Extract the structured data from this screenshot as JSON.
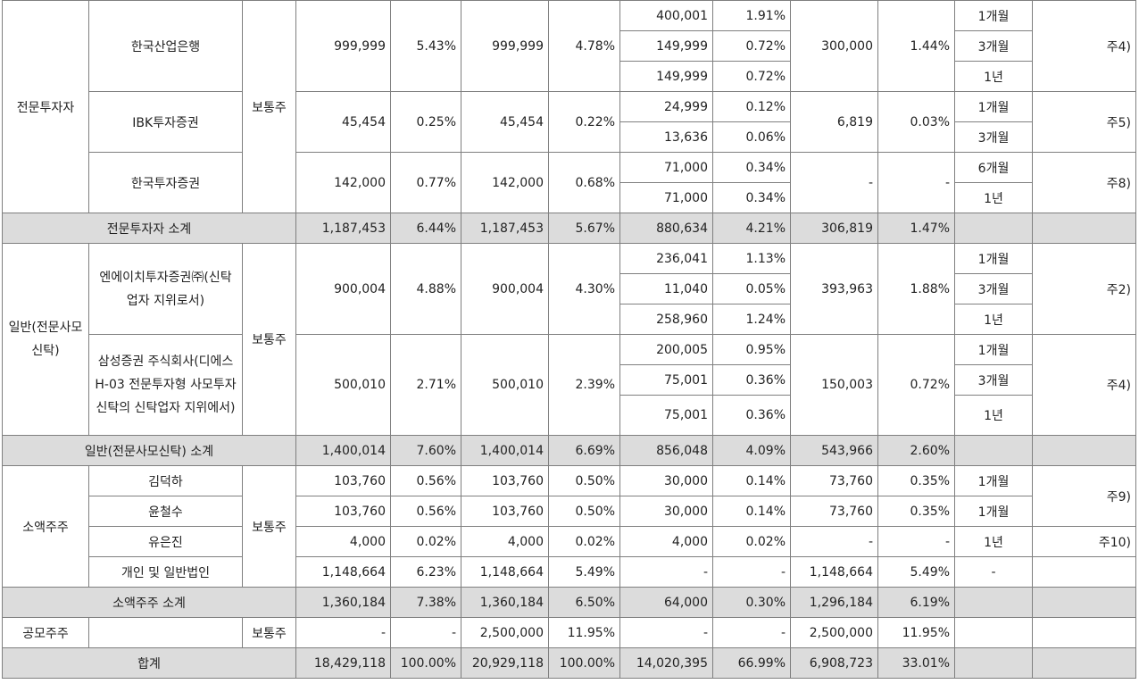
{
  "groups": {
    "pro": {
      "label": "전문투자자",
      "stock": "보통주",
      "inv1": {
        "name": "한국산업은행",
        "pre_shares": "999,999",
        "pre_ratio": "5.43%",
        "post_shares": "999,999",
        "post_ratio": "4.78%",
        "lock": [
          {
            "shares": "400,001",
            "ratio": "1.91%",
            "period": "1개월"
          },
          {
            "shares": "149,999",
            "ratio": "0.72%",
            "period": "3개월"
          },
          {
            "shares": "149,999",
            "ratio": "0.72%",
            "period": "1년"
          }
        ],
        "free_shares": "300,000",
        "free_ratio": "1.44%",
        "note": "주4)"
      },
      "inv2": {
        "name": "IBK투자증권",
        "pre_shares": "45,454",
        "pre_ratio": "0.25%",
        "post_shares": "45,454",
        "post_ratio": "0.22%",
        "lock": [
          {
            "shares": "24,999",
            "ratio": "0.12%",
            "period": "1개월"
          },
          {
            "shares": "13,636",
            "ratio": "0.06%",
            "period": "3개월"
          }
        ],
        "free_shares": "6,819",
        "free_ratio": "0.03%",
        "note": "주5)"
      },
      "inv3": {
        "name": "한국투자증권",
        "pre_shares": "142,000",
        "pre_ratio": "0.77%",
        "post_shares": "142,000",
        "post_ratio": "0.68%",
        "lock": [
          {
            "shares": "71,000",
            "ratio": "0.34%",
            "period": "6개월"
          },
          {
            "shares": "71,000",
            "ratio": "0.34%",
            "period": "1년"
          }
        ],
        "free_shares": "-",
        "free_ratio": "-",
        "note": "주8)"
      },
      "subtotal": {
        "label": "전문투자자 소계",
        "pre_shares": "1,187,453",
        "pre_ratio": "6.44%",
        "post_shares": "1,187,453",
        "post_ratio": "5.67%",
        "lock_shares": "880,634",
        "lock_ratio": "4.21%",
        "free_shares": "306,819",
        "free_ratio": "1.47%"
      }
    },
    "general": {
      "label": "일반(전문사모신탁)",
      "stock": "보통주",
      "inv1": {
        "name": "엔에이치투자증권㈜(신탁업자 지위로서)",
        "pre_shares": "900,004",
        "pre_ratio": "4.88%",
        "post_shares": "900,004",
        "post_ratio": "4.30%",
        "lock": [
          {
            "shares": "236,041",
            "ratio": "1.13%",
            "period": "1개월"
          },
          {
            "shares": "11,040",
            "ratio": "0.05%",
            "period": "3개월"
          },
          {
            "shares": "258,960",
            "ratio": "1.24%",
            "period": "1년"
          }
        ],
        "free_shares": "393,963",
        "free_ratio": "1.88%",
        "note": "주2)"
      },
      "inv2": {
        "name": "삼성증권 주식회사(디에스 H-03 전문투자형 사모투자신탁의 신탁업자 지위에서)",
        "pre_shares": "500,010",
        "pre_ratio": "2.71%",
        "post_shares": "500,010",
        "post_ratio": "2.39%",
        "lock": [
          {
            "shares": "200,005",
            "ratio": "0.95%",
            "period": "1개월"
          },
          {
            "shares": "75,001",
            "ratio": "0.36%",
            "period": "3개월"
          },
          {
            "shares": "75,001",
            "ratio": "0.36%",
            "period": "1년"
          }
        ],
        "free_shares": "150,003",
        "free_ratio": "0.72%",
        "note": "주4)"
      },
      "subtotal": {
        "label": "일반(전문사모신탁) 소계",
        "pre_shares": "1,400,014",
        "pre_ratio": "7.60%",
        "post_shares": "1,400,014",
        "post_ratio": "6.69%",
        "lock_shares": "856,048",
        "lock_ratio": "4.09%",
        "free_shares": "543,966",
        "free_ratio": "2.60%"
      }
    },
    "minor": {
      "label": "소액주주",
      "stock": "보통주",
      "rows": [
        {
          "name": "김덕하",
          "pre_shares": "103,760",
          "pre_ratio": "0.56%",
          "post_shares": "103,760",
          "post_ratio": "0.50%",
          "lock_shares": "30,000",
          "lock_ratio": "0.14%",
          "free_shares": "73,760",
          "free_ratio": "0.35%",
          "period": "1개월"
        },
        {
          "name": "윤철수",
          "pre_shares": "103,760",
          "pre_ratio": "0.56%",
          "post_shares": "103,760",
          "post_ratio": "0.50%",
          "lock_shares": "30,000",
          "lock_ratio": "0.14%",
          "free_shares": "73,760",
          "free_ratio": "0.35%",
          "period": "1개월"
        },
        {
          "name": "유은진",
          "pre_shares": "4,000",
          "pre_ratio": "0.02%",
          "post_shares": "4,000",
          "post_ratio": "0.02%",
          "lock_shares": "4,000",
          "lock_ratio": "0.02%",
          "free_shares": "-",
          "free_ratio": "-",
          "period": "1년"
        },
        {
          "name": "개인 및 일반법인",
          "pre_shares": "1,148,664",
          "pre_ratio": "6.23%",
          "post_shares": "1,148,664",
          "post_ratio": "5.49%",
          "lock_shares": "-",
          "lock_ratio": "-",
          "free_shares": "1,148,664",
          "free_ratio": "5.49%",
          "period": "-"
        }
      ],
      "note_a": "주9)",
      "note_b": "주10)",
      "subtotal": {
        "label": "소액주주 소계",
        "pre_shares": "1,360,184",
        "pre_ratio": "7.38%",
        "post_shares": "1,360,184",
        "post_ratio": "6.50%",
        "lock_shares": "64,000",
        "lock_ratio": "0.30%",
        "free_shares": "1,296,184",
        "free_ratio": "6.19%"
      }
    },
    "public": {
      "label": "공모주주",
      "stock": "보통주",
      "pre_shares": "-",
      "pre_ratio": "-",
      "post_shares": "2,500,000",
      "post_ratio": "11.95%",
      "lock_shares": "-",
      "lock_ratio": "-",
      "free_shares": "2,500,000",
      "free_ratio": "11.95%"
    },
    "total": {
      "label": "합계",
      "pre_shares": "18,429,118",
      "pre_ratio": "100.00%",
      "post_shares": "20,929,118",
      "post_ratio": "100.00%",
      "lock_shares": "14,020,395",
      "lock_ratio": "66.99%",
      "free_shares": "6,908,723",
      "free_ratio": "33.01%"
    }
  }
}
